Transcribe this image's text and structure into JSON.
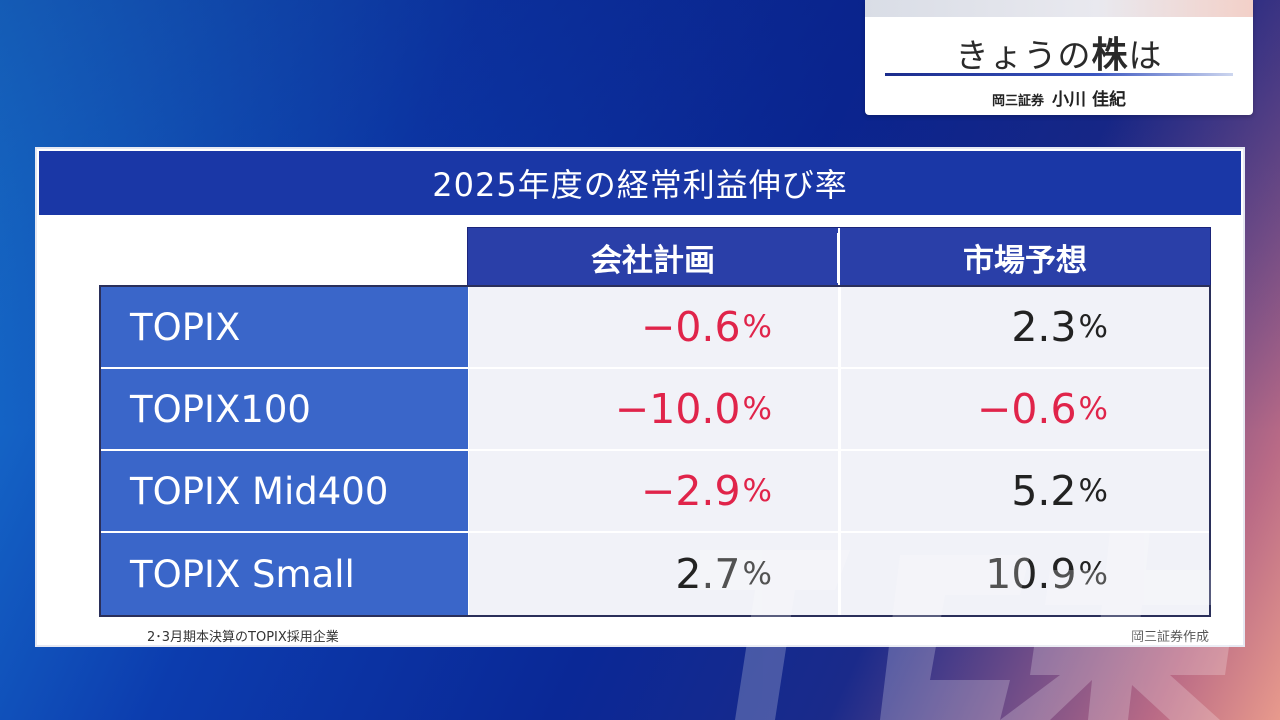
{
  "caption": {
    "title_prefix": "きょうの",
    "title_strong": "株",
    "title_suffix": "は",
    "firm": "岡三証券",
    "presenter": "小川 佳紀"
  },
  "panel": {
    "title": "2025年度の経常利益伸び率",
    "columns": [
      "会社計画",
      "市場予想"
    ],
    "rows": [
      {
        "label": "TOPIX",
        "company_plan": "−0.6",
        "market_forecast": "2.3"
      },
      {
        "label": "TOPIX100",
        "company_plan": "−10.0",
        "market_forecast": "−0.6"
      },
      {
        "label": "TOPIX Mid400",
        "company_plan": "−2.9",
        "market_forecast": "5.2"
      },
      {
        "label": "TOPIX Small",
        "company_plan": "2.7",
        "market_forecast": "10.9"
      }
    ],
    "unit": "%",
    "footnote": "2･3月期本決算のTOPIX採用企業",
    "source": "岡三証券作成"
  },
  "colors": {
    "header_blue": "#1a37a6",
    "row_label_blue": "#3a66c9",
    "negative_red": "#e0244a"
  }
}
